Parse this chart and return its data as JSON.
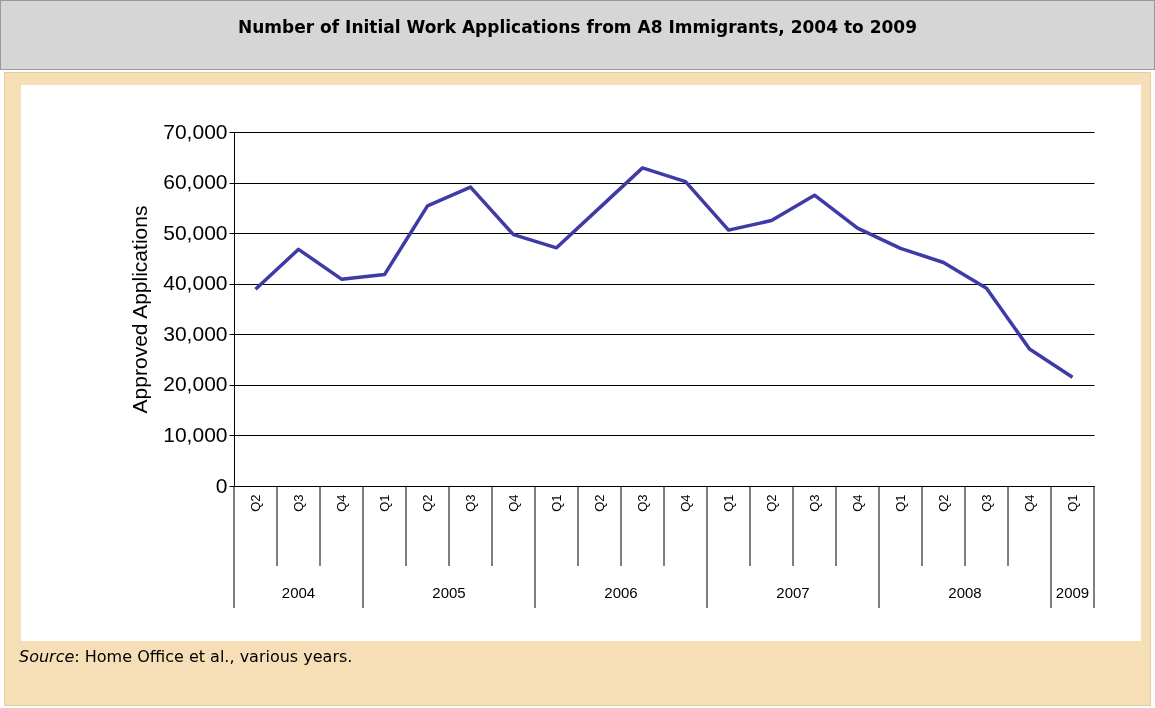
{
  "chart_data": {
    "type": "line",
    "title": "Number of Initial Work Applications from A8 Immigrants, 2004 to 2009",
    "ylabel": "Approved Applications",
    "categories": [
      "Q2",
      "Q3",
      "Q4",
      "Q1",
      "Q2",
      "Q3",
      "Q4",
      "Q1",
      "Q2",
      "Q3",
      "Q4",
      "Q1",
      "Q2",
      "Q3",
      "Q4",
      "Q1",
      "Q2",
      "Q3",
      "Q4",
      "Q1"
    ],
    "series": [
      {
        "color": "#3e3aa6",
        "values": [
          38900,
          46800,
          40900,
          41800,
          55400,
          59100,
          49700,
          47100,
          55000,
          62900,
          60200,
          50600,
          52500,
          57500,
          51000,
          47000,
          44200,
          39100,
          27100,
          21500
        ]
      }
    ],
    "ylim": [
      0,
      70000
    ],
    "yticks": [
      0,
      {
        "value": 10000,
        "label": "10,000"
      },
      {
        "value": 20000,
        "label": "20,000"
      },
      {
        "value": 30000,
        "label": "30,000"
      },
      {
        "value": 40000,
        "label": "40,000"
      },
      {
        "value": 50000,
        "label": "50,000"
      },
      {
        "value": 60000,
        "label": "60,000"
      },
      {
        "value": 70000,
        "label": "70,000"
      }
    ],
    "grid": "y",
    "marker": "none",
    "line_style": "solid",
    "annotations": [
      "2004",
      "2005",
      "2006",
      "2007",
      "2008",
      "2009",
      "Source: Home Office et al., various years."
    ]
  }
}
